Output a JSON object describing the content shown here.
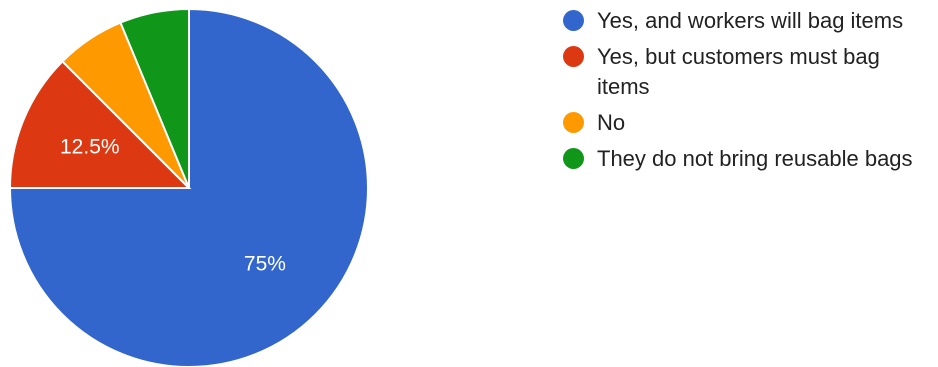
{
  "chart_data": {
    "type": "pie",
    "title": "",
    "legend_position": "right",
    "slices": [
      {
        "label": "Yes, and workers will bag items",
        "value": 75,
        "color": "#3366cc",
        "data_label": "75%"
      },
      {
        "label": "Yes, but customers must bag items",
        "value": 12.5,
        "color": "#dc3912",
        "data_label": "12.5%"
      },
      {
        "label": "No",
        "value": 6.25,
        "color": "#ff9900",
        "data_label": ""
      },
      {
        "label": "They do not bring reusable bags",
        "value": 6.25,
        "color": "#109618",
        "data_label": ""
      }
    ]
  }
}
